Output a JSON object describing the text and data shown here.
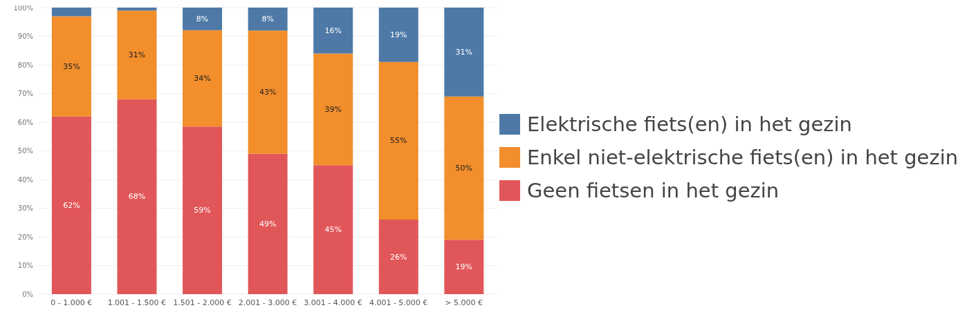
{
  "chart_data": {
    "type": "bar",
    "stacked": true,
    "categories": [
      "0 - 1.000 €",
      "1.001 - 1.500 €",
      "1.501 - 2.000 €",
      "2.001 - 3.000 €",
      "3.001 - 4.000 €",
      "4.001 - 5.000 €",
      "> 5.000 €"
    ],
    "series": [
      {
        "name": "Geen fietsen in het gezin",
        "color": "#e15759",
        "values": [
          62,
          68,
          58.5,
          49,
          45,
          26,
          19
        ],
        "value_labels": [
          "62%",
          "68%",
          "59%",
          "49%",
          "45%",
          "26%",
          "19%"
        ]
      },
      {
        "name": "Enkel niet-elektrische fiets(en) in het gezin",
        "color": "#f28e2b",
        "values": [
          35,
          31,
          33.6,
          43,
          39,
          55,
          50
        ],
        "value_labels": [
          "35%",
          "31%",
          "34%",
          "43%",
          "39%",
          "55%",
          "50%"
        ]
      },
      {
        "name": "Elektrische fiets(en) in het gezin",
        "color": "#4e79a7",
        "values": [
          3,
          1,
          7.9,
          8,
          16,
          19,
          31
        ],
        "value_labels": [
          null,
          null,
          "8%",
          "8%",
          "16%",
          "19%",
          "31%"
        ]
      }
    ],
    "ylim": [
      0,
      100
    ],
    "yticks": [
      {
        "value": 0,
        "label": "0%"
      },
      {
        "value": 10,
        "label": "10%"
      },
      {
        "value": 20,
        "label": "20%"
      },
      {
        "value": 30,
        "label": "30%"
      },
      {
        "value": 40,
        "label": "40%"
      },
      {
        "value": 50,
        "label": "50%"
      },
      {
        "value": 60,
        "label": "60%"
      },
      {
        "value": 70,
        "label": "70%"
      },
      {
        "value": 80,
        "label": "80%"
      },
      {
        "value": 90,
        "label": "90%"
      },
      {
        "value": 100,
        "label": "100%"
      }
    ],
    "grid": "y",
    "legend": "right"
  }
}
